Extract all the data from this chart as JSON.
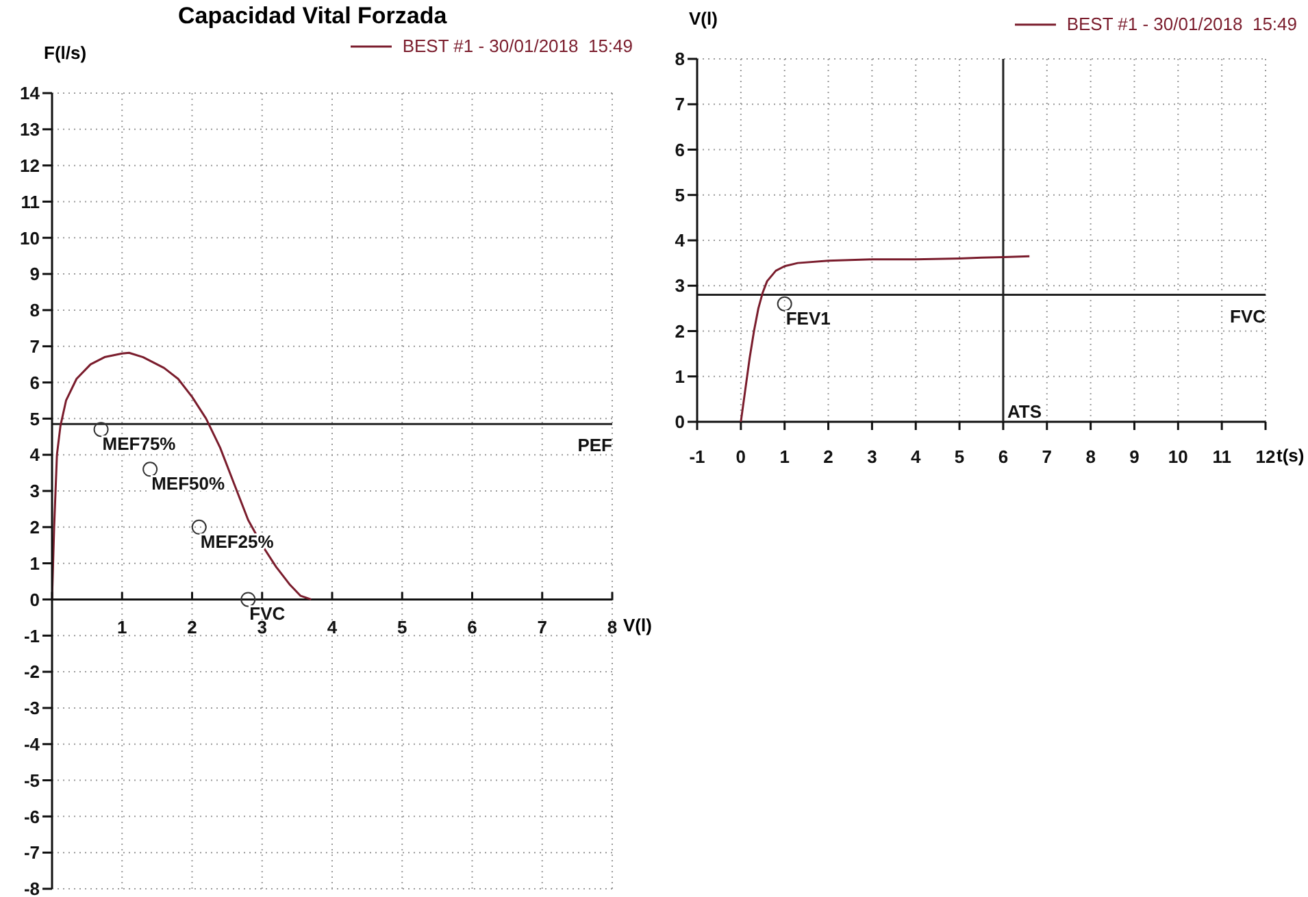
{
  "chart_data": [
    {
      "type": "line",
      "title": "Capacidad Vital Forzada",
      "xlabel": "V(l)",
      "ylabel": "F(l/s)",
      "legend": "top right",
      "grid": true,
      "xlim": [
        0,
        8
      ],
      "ylim": [
        -8,
        14
      ],
      "xticks": [
        {
          "value": 0,
          "label": null
        },
        1,
        2,
        3,
        4,
        5,
        6,
        7,
        8
      ],
      "yticks": [
        -8,
        -7,
        -6,
        -5,
        -4,
        -3,
        -2,
        -1,
        0,
        1,
        2,
        3,
        4,
        5,
        6,
        7,
        8,
        9,
        10,
        11,
        12,
        13,
        14
      ],
      "series": [
        {
          "name": "BEST #1 - 30/01/2018  15:49",
          "color": "#7a1c2c",
          "x": [
            0,
            0.03,
            0.07,
            0.12,
            0.2,
            0.35,
            0.55,
            0.75,
            1.0,
            1.1,
            1.3,
            1.6,
            1.8,
            2.0,
            2.2,
            2.4,
            2.6,
            2.8,
            3.0,
            3.2,
            3.4,
            3.55,
            3.7
          ],
          "values": [
            0,
            2,
            4,
            4.8,
            5.5,
            6.1,
            6.5,
            6.7,
            6.8,
            6.82,
            6.7,
            6.4,
            6.1,
            5.6,
            5.0,
            4.2,
            3.2,
            2.2,
            1.5,
            0.9,
            0.4,
            0.1,
            0
          ]
        }
      ],
      "ref_lines": [
        {
          "axis": "y",
          "value": 4.85,
          "label": "PEF",
          "color": "#222222"
        }
      ],
      "annotations": [
        {
          "text": "MEF75%",
          "x": 0.7,
          "y": 4.7
        },
        {
          "text": "MEF50%",
          "x": 1.4,
          "y": 3.6
        },
        {
          "text": "MEF25%",
          "x": 2.1,
          "y": 2.0
        },
        {
          "text": "FVC",
          "x": 2.8,
          "y": 0
        }
      ]
    },
    {
      "type": "line",
      "xlabel": "t(s)",
      "ylabel": "V(l)",
      "legend": "top right",
      "grid": true,
      "xlim": [
        -1,
        12
      ],
      "ylim": [
        0,
        8
      ],
      "xticks": [
        -1,
        0,
        1,
        2,
        3,
        4,
        5,
        6,
        7,
        8,
        9,
        10,
        11,
        12
      ],
      "yticks": [
        0,
        1,
        2,
        3,
        4,
        5,
        6,
        7,
        8
      ],
      "series": [
        {
          "name": "BEST #1 - 30/01/2018  15:49",
          "color": "#7a1c2c",
          "x": [
            0,
            0.1,
            0.2,
            0.3,
            0.4,
            0.5,
            0.6,
            0.8,
            1.0,
            1.3,
            2,
            3,
            4,
            5,
            5.5,
            6,
            6.6
          ],
          "values": [
            0,
            0.7,
            1.4,
            2.0,
            2.5,
            2.85,
            3.1,
            3.33,
            3.43,
            3.5,
            3.55,
            3.58,
            3.58,
            3.6,
            3.62,
            3.63,
            3.65
          ]
        }
      ],
      "ref_lines": [
        {
          "axis": "y",
          "value": 2.8,
          "label": "FVC",
          "color": "#222222"
        },
        {
          "axis": "x",
          "value": 6,
          "label": "ATS",
          "color": "#222222"
        }
      ],
      "annotations": [
        {
          "text": "FEV1",
          "x": 1.0,
          "y": 2.6
        }
      ]
    }
  ]
}
